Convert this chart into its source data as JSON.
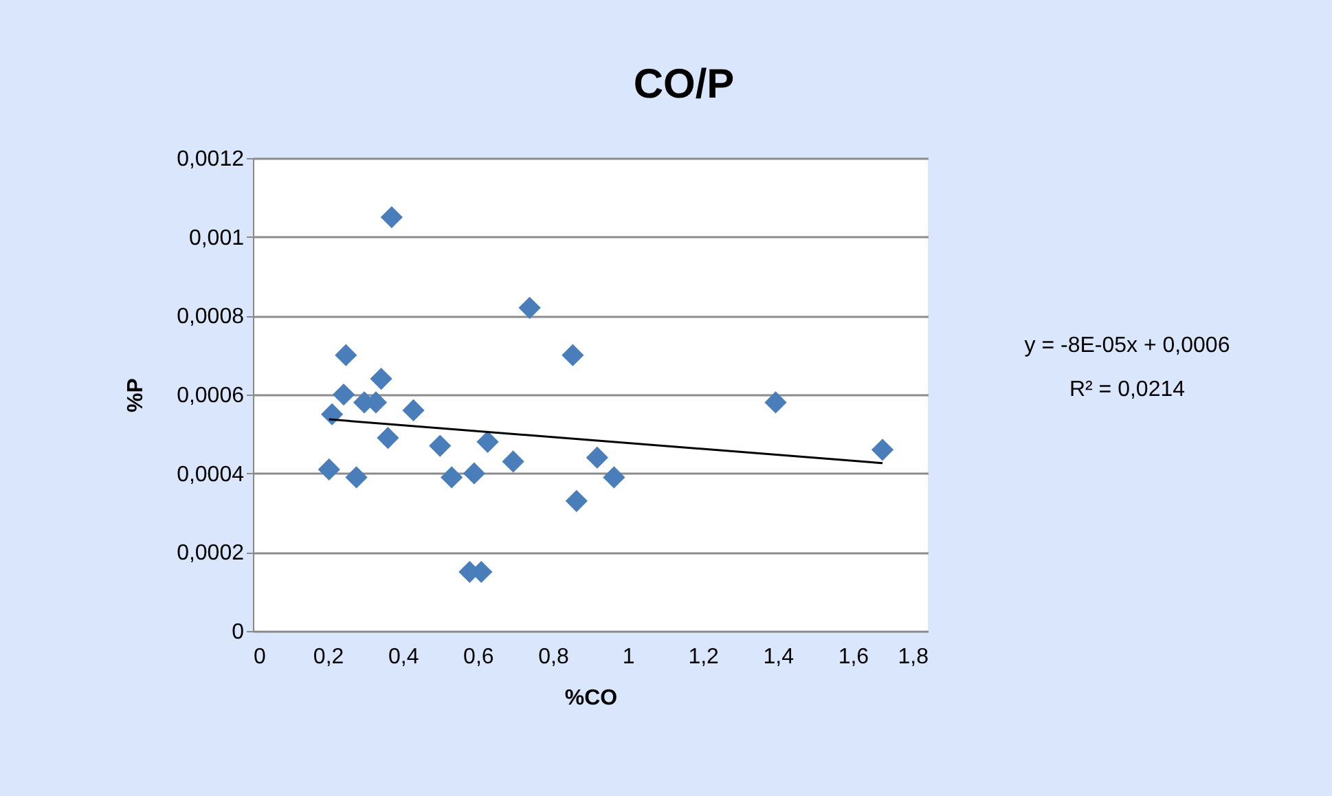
{
  "chart_data": {
    "type": "scatter",
    "title": "CO/P",
    "xlabel": "%CO",
    "ylabel": "%P",
    "x": [
      0.37,
      0.248,
      0.342,
      0.242,
      0.297,
      0.328,
      0.211,
      0.428,
      0.36,
      0.499,
      0.626,
      0.694,
      0.203,
      0.276,
      0.53,
      0.59,
      0.738,
      0.853,
      0.918,
      0.963,
      0.863,
      0.578,
      0.609,
      1.394,
      1.679
    ],
    "series": [
      {
        "type": "scatter",
        "color": "#4a7ebb",
        "marker": "diamond",
        "values": [
          0.00105,
          0.0007,
          0.00064,
          0.0006,
          0.00058,
          0.00058,
          0.00055,
          0.00056,
          0.00049,
          0.00047,
          0.00048,
          0.00043,
          0.00041,
          0.00039,
          0.00039,
          0.0004,
          0.00082,
          0.0007,
          0.00044,
          0.00039,
          0.00033,
          0.00015,
          0.00015,
          0.00058,
          0.00046
        ]
      },
      {
        "type": "line",
        "color": "#000000",
        "marker": "none",
        "line_style": "solid",
        "x": [
          0.203,
          1.679
        ],
        "values": [
          0.000537,
          0.000426
        ]
      }
    ],
    "xlim": [
      0,
      1.8
    ],
    "xticks": [
      0,
      {
        "value": 0.2,
        "label": "0,2"
      },
      {
        "value": 0.4,
        "label": "0,4"
      },
      {
        "value": 0.6,
        "label": "0,6"
      },
      {
        "value": 0.8,
        "label": "0,8"
      },
      1,
      {
        "value": 1.2,
        "label": "1,2"
      },
      {
        "value": 1.4,
        "label": "1,4"
      },
      {
        "value": 1.6,
        "label": "1,6"
      },
      {
        "value": 1.8,
        "label": "1,8"
      }
    ],
    "ylim": [
      0,
      0.0012
    ],
    "yticks": [
      0,
      {
        "value": 0.0002,
        "label": "0,0002"
      },
      {
        "value": 0.0004,
        "label": "0,0004"
      },
      {
        "value": 0.0006,
        "label": "0,0006"
      },
      {
        "value": 0.0008,
        "label": "0,0008"
      },
      {
        "value": 0.001,
        "label": "0,001"
      },
      {
        "value": 0.0012,
        "label": "0,0012"
      }
    ],
    "grid": "y",
    "annotations": [
      "y = -8E-05x + 0,0006",
      "R² = 0,0214"
    ]
  }
}
